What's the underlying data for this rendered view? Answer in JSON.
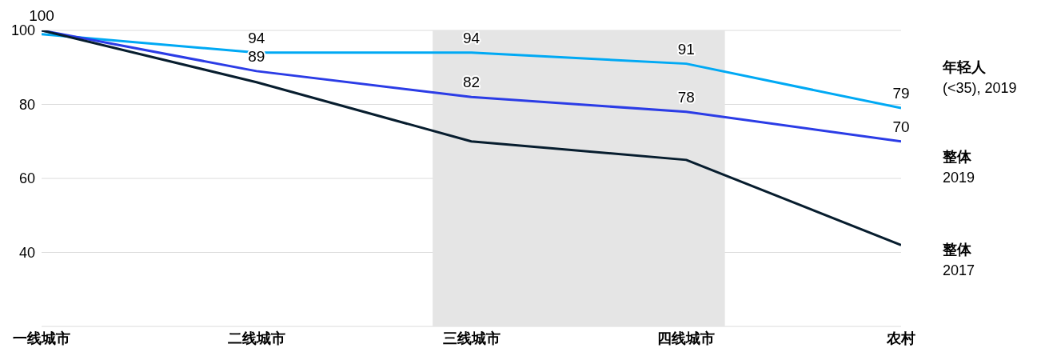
{
  "chart_data": {
    "type": "line",
    "categories": [
      "一线城市",
      "二线城市",
      "三线城市",
      "四线城市",
      "农村"
    ],
    "series": [
      {
        "name": "年轻人 (<35), 2019",
        "color": "#00a9f4",
        "values": [
          99,
          94,
          94,
          91,
          79
        ],
        "value_labels": [
          null,
          "94",
          "94",
          "91",
          "79"
        ]
      },
      {
        "name": "整体 2019",
        "color": "#2b3ce6",
        "values": [
          100,
          89,
          82,
          78,
          70
        ],
        "value_labels": [
          "100",
          "89",
          "82",
          "78",
          "70"
        ]
      },
      {
        "name": "整体 2017",
        "color": "#071d2e",
        "values": [
          100,
          86,
          70,
          65,
          42
        ]
      }
    ],
    "ylim": [
      20,
      100
    ],
    "yticks": [
      40,
      60,
      80,
      100
    ],
    "grid": "y",
    "marker": "none",
    "line_style": "solid",
    "bands": [
      {
        "axis": "x",
        "from": "三线城市",
        "to": "四线城市",
        "color": "#e5e5e5"
      }
    ]
  }
}
